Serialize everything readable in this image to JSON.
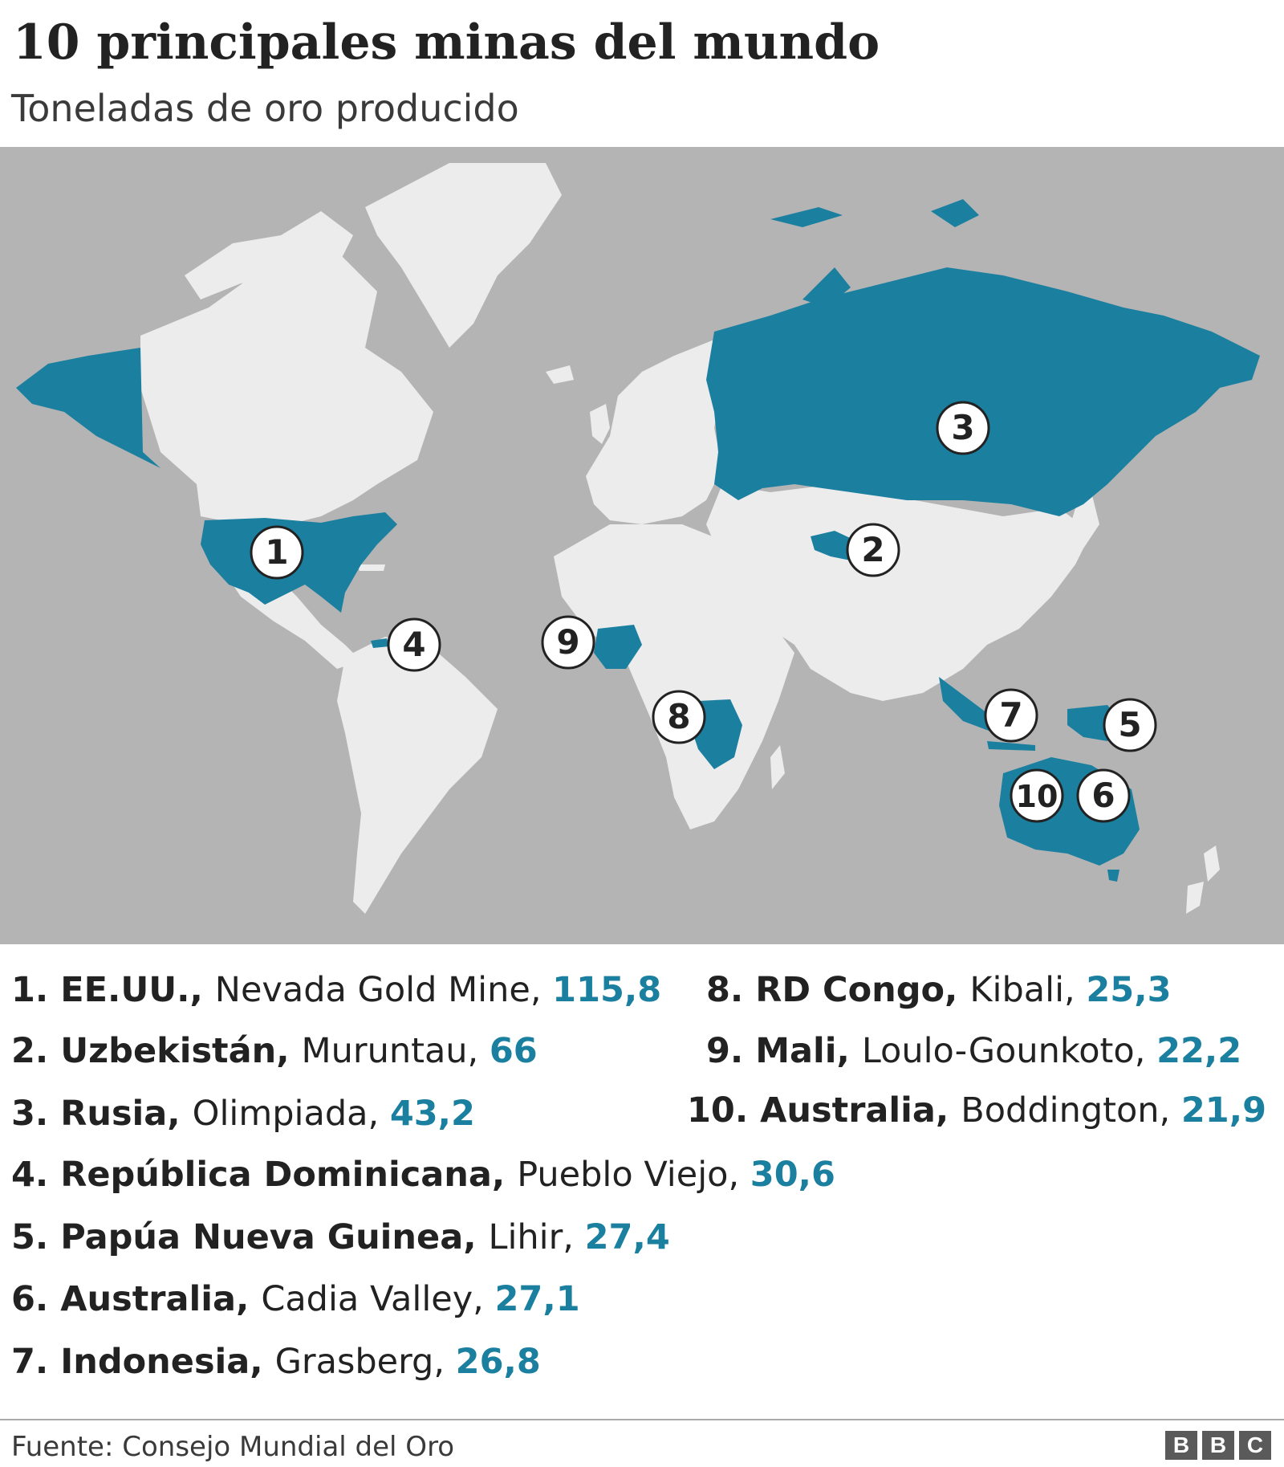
{
  "title": "10 principales minas del mundo",
  "subtitle": "Toneladas de oro producido",
  "colors": {
    "ocean": "#b4b4b4",
    "land": "#ececec",
    "highlight": "#1b7fa0",
    "value_text": "#1b7fa0",
    "marker_fill": "#ffffff",
    "marker_stroke": "#222222"
  },
  "markers": [
    {
      "num": "1",
      "country": "EE.UU."
    },
    {
      "num": "2",
      "country": "Uzbekistán"
    },
    {
      "num": "3",
      "country": "Rusia"
    },
    {
      "num": "4",
      "country": "República Dominicana"
    },
    {
      "num": "5",
      "country": "Papúa Nueva Guinea"
    },
    {
      "num": "6",
      "country": "Australia"
    },
    {
      "num": "7",
      "country": "Indonesia"
    },
    {
      "num": "8",
      "country": "RD Congo"
    },
    {
      "num": "9",
      "country": "Mali"
    },
    {
      "num": "10",
      "country": "Australia"
    }
  ],
  "entries": [
    {
      "num": "1.",
      "country": "EE.UU.,",
      "mine": "Nevada Gold Mine,",
      "value": "115,8"
    },
    {
      "num": "2.",
      "country": "Uzbekistán,",
      "mine": "Muruntau,",
      "value": "66"
    },
    {
      "num": "3.",
      "country": "Rusia,",
      "mine": "Olimpiada,",
      "value": "43,2"
    },
    {
      "num": "4.",
      "country": "República Dominicana,",
      "mine": "Pueblo Viejo,",
      "value": "30,6"
    },
    {
      "num": "5.",
      "country": "Papúa Nueva Guinea,",
      "mine": "Lihir,",
      "value": "27,4"
    },
    {
      "num": "6.",
      "country": "Australia,",
      "mine": "Cadia Valley,",
      "value": "27,1"
    },
    {
      "num": "7.",
      "country": "Indonesia,",
      "mine": "Grasberg,",
      "value": "26,8"
    },
    {
      "num": "8.",
      "country": "RD Congo,",
      "mine": "Kibali,",
      "value": "25,3"
    },
    {
      "num": "9.",
      "country": "Mali,",
      "mine": "Loulo-Gounkoto,",
      "value": "22,2"
    },
    {
      "num": "10.",
      "country": "Australia,",
      "mine": "Boddington,",
      "value": "21,9"
    }
  ],
  "source": "Fuente: Consejo Mundial del Oro",
  "logo": [
    "B",
    "B",
    "C"
  ]
}
